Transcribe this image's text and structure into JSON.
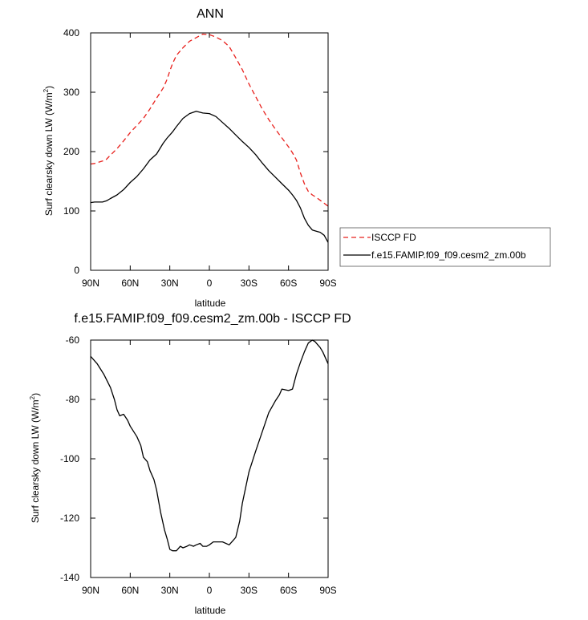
{
  "chart_data": [
    {
      "type": "line",
      "title": "ANN",
      "xlabel": "latitude",
      "ylabel": "Surf clearsky down LW (W/m",
      "ylabel_sup": "2",
      "ylabel_end": ")",
      "xlim": [
        -90,
        90
      ],
      "ylim": [
        0,
        400
      ],
      "x_ticks": [
        -90,
        -60,
        -30,
        0,
        30,
        60,
        90
      ],
      "x_tick_labels": [
        "90N",
        "60N",
        "30N",
        "0",
        "30S",
        "60S",
        "90S"
      ],
      "y_ticks": [
        0,
        100,
        200,
        300,
        400
      ],
      "y_tick_labels": [
        "0",
        "100",
        "200",
        "300",
        "400"
      ],
      "grid": false,
      "legend_position": "right",
      "series": [
        {
          "name": "ISCCP FD",
          "color": "#e8201c",
          "dash": "dashed",
          "x": [
            -90,
            -87,
            -84,
            -81,
            -78,
            -75,
            -70,
            -65,
            -60,
            -55,
            -50,
            -45,
            -40,
            -35,
            -32,
            -30,
            -28,
            -25,
            -20,
            -15,
            -10,
            -5,
            0,
            5,
            10,
            15,
            20,
            25,
            30,
            35,
            40,
            45,
            50,
            55,
            60,
            63,
            66,
            69,
            72,
            75,
            78,
            81,
            84,
            87,
            90
          ],
          "y": [
            179,
            180,
            182,
            184,
            187,
            194,
            205,
            218,
            232,
            244,
            256,
            272,
            290,
            307,
            322,
            336,
            348,
            362,
            375,
            386,
            392,
            398,
            397,
            393,
            387,
            377,
            358,
            338,
            314,
            293,
            272,
            254,
            238,
            223,
            208,
            198,
            186,
            164,
            146,
            133,
            127,
            123,
            118,
            113,
            108
          ]
        },
        {
          "name": "f.e15.FAMIP.f09_f09.cesm2_zm.00b",
          "color": "#000000",
          "dash": "solid",
          "x": [
            -90,
            -87,
            -84,
            -81,
            -78,
            -75,
            -70,
            -65,
            -60,
            -55,
            -50,
            -45,
            -40,
            -35,
            -32,
            -30,
            -28,
            -25,
            -20,
            -15,
            -10,
            -5,
            0,
            5,
            10,
            15,
            20,
            25,
            30,
            35,
            40,
            45,
            50,
            55,
            60,
            63,
            66,
            69,
            72,
            75,
            78,
            81,
            84,
            87,
            90
          ],
          "y": [
            114,
            115,
            115,
            115,
            117,
            121,
            127,
            136,
            148,
            158,
            171,
            186,
            196,
            214,
            223,
            228,
            233,
            242,
            256,
            264,
            268,
            265,
            264,
            259,
            249,
            239,
            228,
            217,
            207,
            195,
            181,
            168,
            157,
            146,
            135,
            127,
            118,
            105,
            88,
            76,
            68,
            66,
            64,
            59,
            47
          ]
        }
      ]
    },
    {
      "type": "line",
      "title": "f.e15.FAMIP.f09_f09.cesm2_zm.00b - ISCCP FD",
      "xlabel": "latitude",
      "ylabel": "Surf clearsky down LW (W/m",
      "ylabel_sup": "2",
      "ylabel_end": ")",
      "xlim": [
        -90,
        90
      ],
      "ylim": [
        -140,
        -60
      ],
      "x_ticks": [
        -90,
        -60,
        -30,
        0,
        30,
        60,
        90
      ],
      "x_tick_labels": [
        "90N",
        "60N",
        "30N",
        "0",
        "30S",
        "60S",
        "90S"
      ],
      "y_ticks": [
        -140,
        -120,
        -100,
        -80,
        -60
      ],
      "y_tick_labels": [
        "-140",
        "-120",
        "-100",
        "-80",
        "-60"
      ],
      "grid": false,
      "series": [
        {
          "color": "#000000",
          "dash": "solid",
          "x": [
            -90,
            -85,
            -80,
            -75,
            -72,
            -70,
            -68,
            -65,
            -62,
            -60,
            -55,
            -52,
            -50,
            -47,
            -45,
            -42,
            -40,
            -37,
            -34,
            -32,
            -30,
            -28,
            -25,
            -22,
            -20,
            -17,
            -15,
            -12,
            -10,
            -7,
            -5,
            -2,
            0,
            3,
            5,
            10,
            15,
            18,
            20,
            23,
            25,
            30,
            35,
            40,
            45,
            50,
            53,
            55,
            60,
            63,
            66,
            69,
            72,
            75,
            78,
            80,
            84,
            86,
            88,
            90
          ],
          "y": [
            -65.5,
            -68,
            -71.5,
            -76,
            -80,
            -83.5,
            -85.5,
            -85,
            -87,
            -89,
            -92.5,
            -95.5,
            -99.5,
            -101,
            -104,
            -107,
            -110.5,
            -118,
            -124,
            -127,
            -130.5,
            -131,
            -131,
            -129.5,
            -130,
            -129.5,
            -129,
            -129.5,
            -129,
            -128.5,
            -129.5,
            -129.5,
            -129,
            -128,
            -128,
            -128,
            -129,
            -127.5,
            -126.5,
            -121,
            -115,
            -104.5,
            -97.5,
            -91,
            -84.5,
            -80.5,
            -78.5,
            -76.5,
            -77,
            -76.5,
            -71.5,
            -67.5,
            -64,
            -61,
            -60,
            -60.5,
            -62.5,
            -64,
            -66,
            -68
          ]
        }
      ]
    }
  ]
}
